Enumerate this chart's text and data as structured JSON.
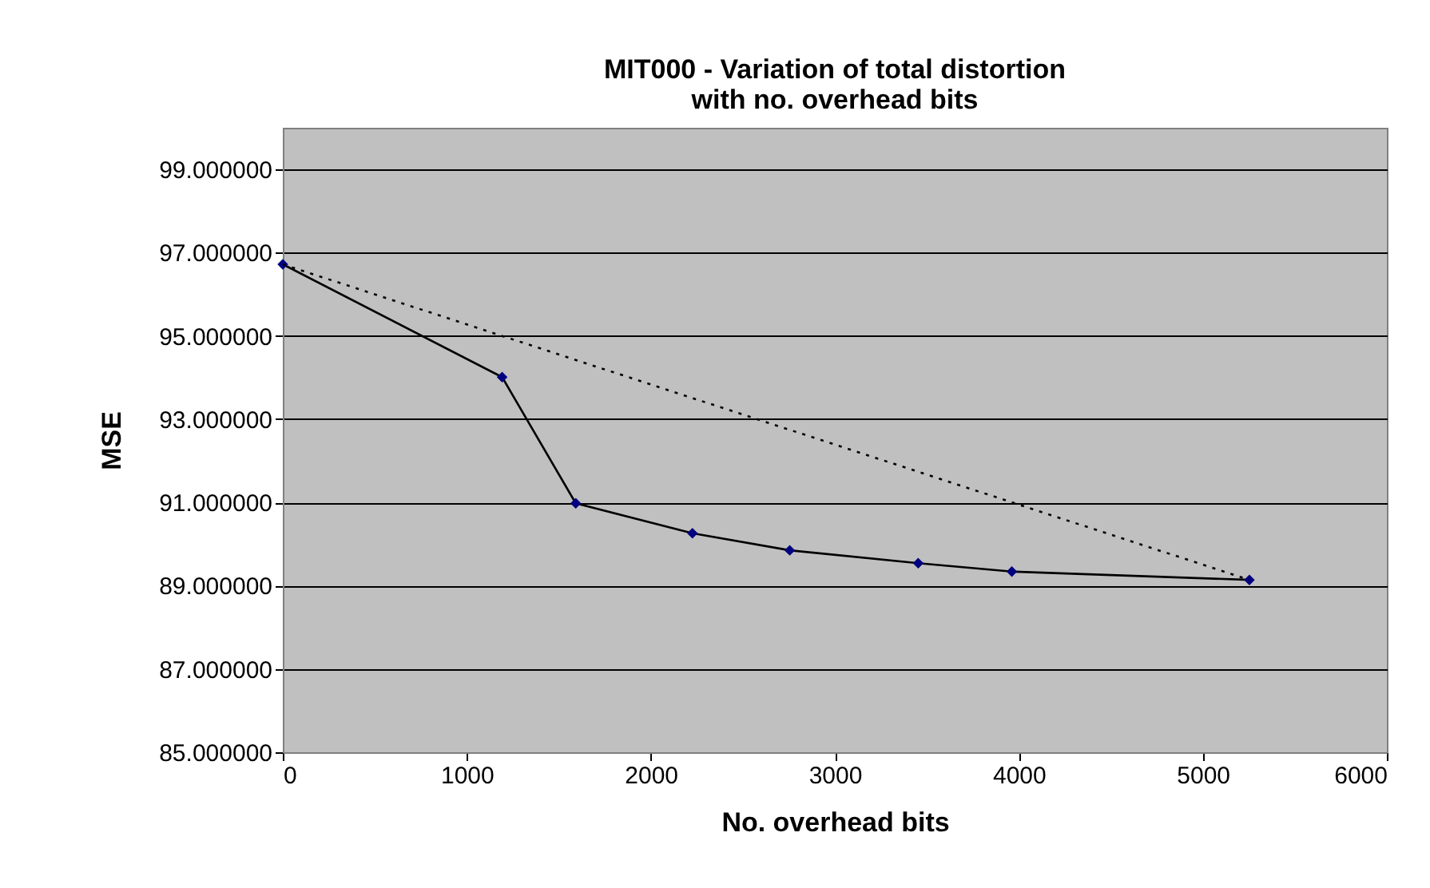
{
  "chart_data": {
    "type": "line",
    "title": [
      "MIT000 - Variation of total distortion",
      "with no. overhead bits"
    ],
    "xlabel": "No. overhead bits",
    "ylabel": "MSE",
    "xlim": [
      0,
      6000
    ],
    "xticks": [
      0,
      1000,
      2000,
      3000,
      4000,
      5000,
      6000
    ],
    "ylim": [
      85,
      100
    ],
    "yticks": [
      {
        "value": 85,
        "label": "85.000000"
      },
      {
        "value": 87,
        "label": "87.000000"
      },
      {
        "value": 89,
        "label": "89.000000"
      },
      {
        "value": 91,
        "label": "91.000000"
      },
      {
        "value": 93,
        "label": "93.000000"
      },
      {
        "value": 95,
        "label": "95.000000"
      },
      {
        "value": 97,
        "label": "97.000000"
      },
      {
        "value": 99,
        "label": "99.000000"
      }
    ],
    "grid": "y",
    "series": [
      {
        "color": "#000000",
        "marker": "diamond",
        "line_style": "solid",
        "x": [
          0,
          1192,
          1592,
          2226,
          2755,
          3453,
          3962,
          5253
        ],
        "values": [
          96.72,
          94.01,
          90.98,
          90.26,
          89.85,
          89.54,
          89.34,
          89.14
        ]
      },
      {
        "type": "line",
        "color": "#000000",
        "marker": "none",
        "line_style": "dotted",
        "x": [
          0,
          5253
        ],
        "values": [
          96.72,
          89.14
        ]
      }
    ]
  }
}
